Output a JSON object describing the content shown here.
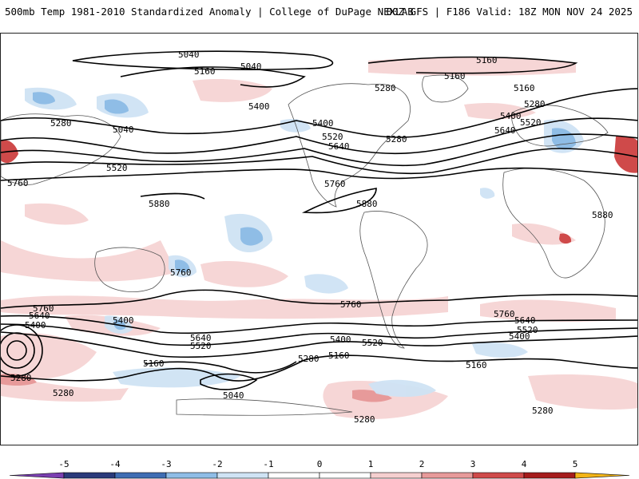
{
  "header": {
    "title_left": "500mb Temp 1981-2010 Standardized Anomaly | College of DuPage NEXLAB",
    "title_right": "00Z GFS | F186 Valid: 18Z MON NOV 24 2025"
  },
  "map": {
    "variable": "500mb temperature standardized anomaly",
    "contour_field": "500mb geopotential height",
    "contour_labels": [
      "5040",
      "5040",
      "5040",
      "5160",
      "5160",
      "5160",
      "5160",
      "5280",
      "5280",
      "5280",
      "5280",
      "5400",
      "5400",
      "5400",
      "5520",
      "5520",
      "5520",
      "5640",
      "5640",
      "5760",
      "5760",
      "5880",
      "5880",
      "5880",
      "5040",
      "5160",
      "5160",
      "5160",
      "5280",
      "5280",
      "5280",
      "5280",
      "5280",
      "5400",
      "5400",
      "5400",
      "5400",
      "5520",
      "5520",
      "5520",
      "5640",
      "5640",
      "5640",
      "5760",
      "5760",
      "5760",
      "5760"
    ]
  },
  "colorbar": {
    "ticks": [
      "-5",
      "-4",
      "-3",
      "-2",
      "-1",
      "0",
      "1",
      "2",
      "3",
      "4",
      "5"
    ],
    "colors": [
      "#2a3a7a",
      "#3f6db3",
      "#8fbde6",
      "#cfe3f4",
      "#ffffff",
      "#ffffff",
      "#f5cfcf",
      "#e79a9a",
      "#cf4a4a",
      "#a51c1c",
      "#7a0000"
    ],
    "low_end_color": "#7a3fb0",
    "high_end_color": "#f2b417"
  }
}
